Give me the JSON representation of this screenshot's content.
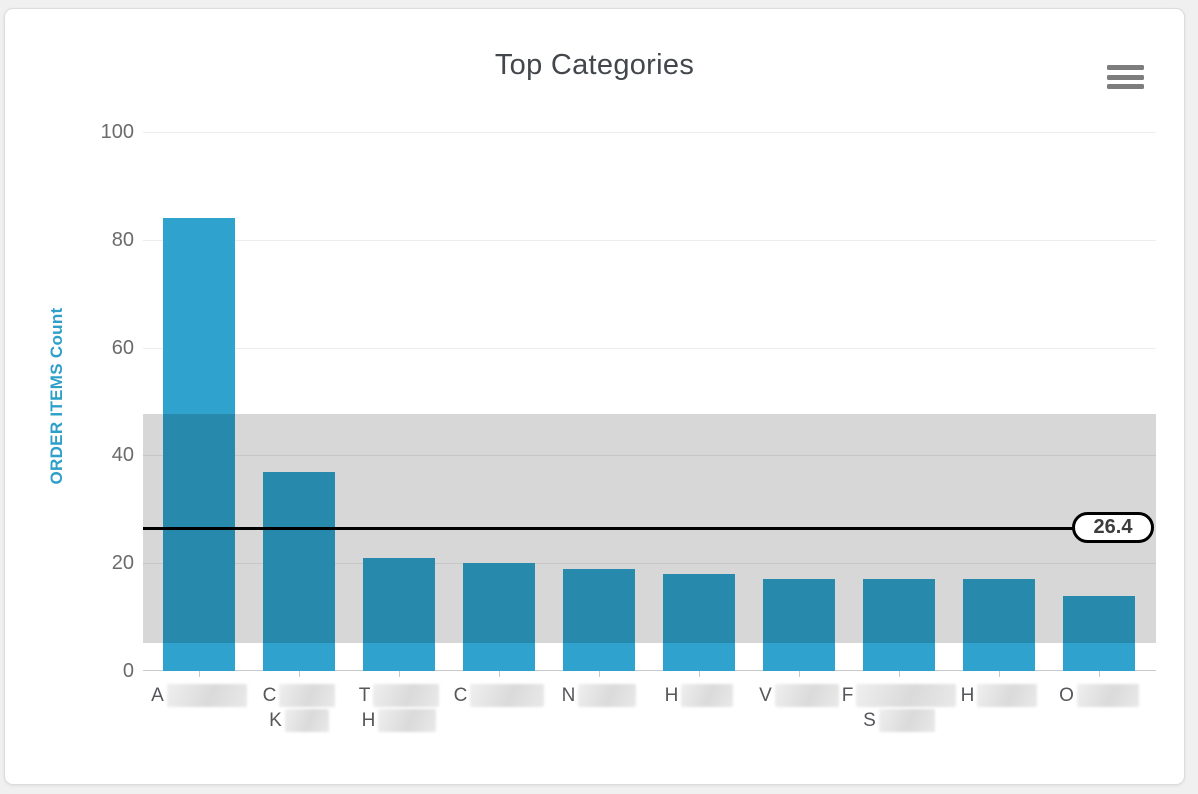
{
  "page": {
    "background": "#f0f0f1"
  },
  "card": {
    "menu_icon": "hamburger-icon"
  },
  "chart_data": {
    "type": "bar",
    "title": "Top Categories",
    "ylabel": "ORDER ITEMS Count",
    "xlabel": "",
    "ylim": [
      0,
      100
    ],
    "yticks": [
      0,
      20,
      40,
      60,
      80,
      100
    ],
    "grid": true,
    "legend": "none",
    "values": [
      84,
      37,
      21,
      20,
      19,
      18,
      17,
      17,
      17,
      14
    ],
    "categories": [
      {
        "lines": [
          {
            "visible_text": "A",
            "redacted": true,
            "mask_width": 80
          }
        ]
      },
      {
        "lines": [
          {
            "visible_text": "C",
            "redacted": true,
            "mask_width": 56
          },
          {
            "visible_text": "K",
            "redacted": true,
            "mask_width": 44
          }
        ]
      },
      {
        "lines": [
          {
            "visible_text": "T",
            "redacted": true,
            "mask_width": 66
          },
          {
            "visible_text": "H",
            "redacted": true,
            "mask_width": 58
          }
        ]
      },
      {
        "lines": [
          {
            "visible_text": "C",
            "redacted": true,
            "mask_width": 74
          }
        ]
      },
      {
        "lines": [
          {
            "visible_text": "N",
            "redacted": true,
            "mask_width": 58
          }
        ]
      },
      {
        "lines": [
          {
            "visible_text": "H",
            "redacted": true,
            "mask_width": 52
          }
        ]
      },
      {
        "lines": [
          {
            "visible_text": "V",
            "redacted": true,
            "mask_width": 64
          }
        ]
      },
      {
        "lines": [
          {
            "visible_text": "F",
            "redacted": true,
            "mask_width": 100
          },
          {
            "visible_text": "S",
            "redacted": true,
            "mask_width": 56
          }
        ]
      },
      {
        "lines": [
          {
            "visible_text": "H",
            "redacted": true,
            "mask_width": 60
          }
        ]
      },
      {
        "lines": [
          {
            "visible_text": "O",
            "redacted": true,
            "mask_width": 62
          }
        ]
      }
    ],
    "average_line": {
      "value": 26.4,
      "label": "26.4",
      "color": "#000000"
    },
    "band": {
      "from": 5.2,
      "to": 47.6,
      "overlay_color": "rgba(0,0,0,0.155)",
      "visible_gray": "#d6d6d6"
    },
    "colors": {
      "bar": "#2fa3cd",
      "title": "#43474c",
      "ylabel": "#2d9fc9",
      "tick_label": "#6b6b6b",
      "x_label": "#55575a",
      "grid": "#ededed",
      "axis_line": "#cbcbcb",
      "menu_icon": "#7d7d7d"
    }
  }
}
